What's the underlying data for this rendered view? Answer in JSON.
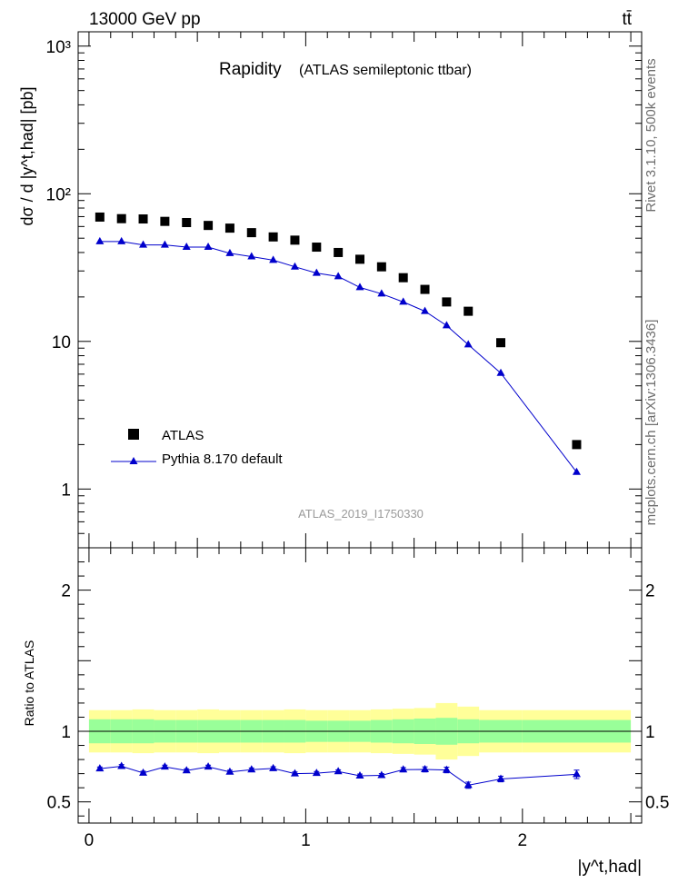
{
  "header": {
    "energy_label": "13000 GeV pp",
    "process_label": "tt̄"
  },
  "side_labels": {
    "rivet": "Rivet 3.1.10,  500k events",
    "mcplots": "mcplots.cern.ch [arXiv:1306.3436]"
  },
  "plot_title": {
    "main": "Rapidity",
    "sub": "(ATLAS semileptonic ttbar)"
  },
  "analysis_id": "ATLAS_2019_I1750330",
  "legend": {
    "data_label": "ATLAS",
    "mc_label": "Pythia 8.170 default"
  },
  "colors": {
    "data": "#000000",
    "mc": "#0000cc",
    "band_inner": "#99ff99",
    "band_outer": "#ffff99"
  },
  "chart_data": [
    {
      "type": "scatter",
      "name": "main",
      "ylabel": "dσ / d |y^t,had| [pb]",
      "yscale": "log",
      "xlim": [
        -0.05,
        2.55
      ],
      "ylim": [
        0.4,
        1250
      ],
      "ytick_labels": [
        "1",
        "10",
        "10²",
        "10³"
      ],
      "series": [
        {
          "name": "ATLAS",
          "x": [
            0.05,
            0.15,
            0.25,
            0.35,
            0.45,
            0.55,
            0.65,
            0.75,
            0.85,
            0.95,
            1.05,
            1.15,
            1.25,
            1.35,
            1.45,
            1.55,
            1.65,
            1.75,
            1.9,
            2.25
          ],
          "y": [
            69.5,
            67.8,
            67.5,
            65.0,
            63.8,
            61.0,
            58.5,
            54.5,
            51.0,
            48.5,
            43.5,
            40.0,
            36.0,
            32.0,
            27.0,
            22.5,
            18.5,
            16.0,
            9.8,
            2.0
          ]
        },
        {
          "name": "Pythia 8.170 default",
          "x": [
            0.05,
            0.15,
            0.25,
            0.35,
            0.45,
            0.55,
            0.65,
            0.75,
            0.85,
            0.95,
            1.05,
            1.15,
            1.25,
            1.35,
            1.45,
            1.55,
            1.65,
            1.75,
            1.9,
            2.25
          ],
          "y": [
            47.5,
            47.5,
            45.0,
            45.0,
            43.5,
            43.5,
            39.5,
            37.5,
            35.5,
            32.0,
            29.0,
            27.5,
            23.2,
            21.0,
            18.5,
            16.0,
            12.8,
            9.5,
            6.1,
            1.3
          ]
        }
      ]
    },
    {
      "type": "scatter",
      "name": "ratio",
      "ylabel": "Ratio to ATLAS",
      "xlabel": "|y^t,had|",
      "xlim": [
        -0.05,
        2.55
      ],
      "ylim": [
        0.35,
        2.3
      ],
      "ytick_labels": [
        "0.5",
        "1",
        "2"
      ],
      "xtick_labels": [
        "0",
        "1",
        "2"
      ],
      "band_edges": [
        0.0,
        0.1,
        0.2,
        0.3,
        0.4,
        0.5,
        0.6,
        0.7,
        0.8,
        0.9,
        1.0,
        1.1,
        1.2,
        1.3,
        1.4,
        1.5,
        1.6,
        1.7,
        1.8,
        2.0,
        2.5
      ],
      "band_inner": [
        0.085,
        0.085,
        0.085,
        0.08,
        0.08,
        0.08,
        0.08,
        0.08,
        0.08,
        0.08,
        0.075,
        0.075,
        0.075,
        0.08,
        0.085,
        0.09,
        0.095,
        0.085,
        0.08,
        0.08
      ],
      "band_outer": [
        0.15,
        0.15,
        0.155,
        0.15,
        0.15,
        0.155,
        0.15,
        0.15,
        0.15,
        0.155,
        0.15,
        0.15,
        0.15,
        0.155,
        0.16,
        0.165,
        0.2,
        0.175,
        0.15,
        0.15
      ],
      "series": [
        {
          "name": "Pythia 8.170 default",
          "x": [
            0.05,
            0.15,
            0.25,
            0.35,
            0.45,
            0.55,
            0.65,
            0.75,
            0.85,
            0.95,
            1.05,
            1.15,
            1.25,
            1.35,
            1.45,
            1.55,
            1.65,
            1.75,
            1.9,
            2.25
          ],
          "y": [
            0.735,
            0.752,
            0.705,
            0.748,
            0.722,
            0.748,
            0.712,
            0.728,
            0.737,
            0.7,
            0.703,
            0.715,
            0.685,
            0.688,
            0.728,
            0.73,
            0.726,
            0.618,
            0.662,
            0.695
          ],
          "err": [
            0.012,
            0.012,
            0.012,
            0.012,
            0.012,
            0.012,
            0.012,
            0.012,
            0.012,
            0.012,
            0.012,
            0.012,
            0.012,
            0.012,
            0.015,
            0.018,
            0.02,
            0.022,
            0.02,
            0.03
          ]
        }
      ]
    }
  ]
}
